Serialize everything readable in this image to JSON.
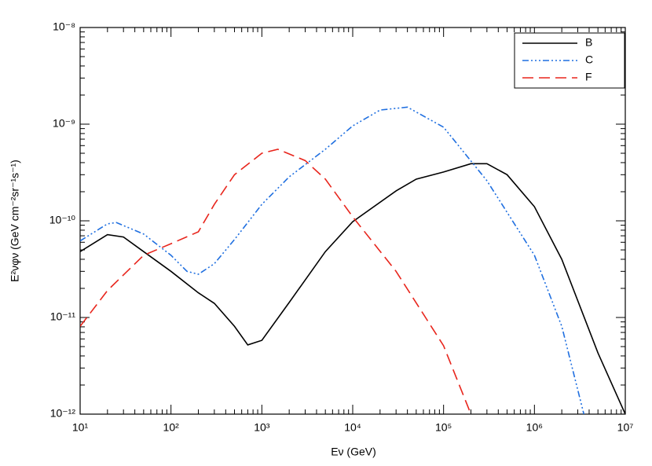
{
  "chart_data": {
    "type": "line",
    "x_label": "Eν (GeV)",
    "y_label": "E²νφν (GeV cm⁻²sr⁻¹s⁻¹)",
    "xscale": "log",
    "yscale": "log",
    "xlim": [
      10,
      10000000
    ],
    "ylim": [
      1e-12,
      1e-08
    ],
    "xticks": [
      {
        "value": 10,
        "label": "10¹"
      },
      {
        "value": 100,
        "label": "10²"
      },
      {
        "value": 1000,
        "label": "10³"
      },
      {
        "value": 10000,
        "label": "10⁴"
      },
      {
        "value": 100000,
        "label": "10⁵"
      },
      {
        "value": 1000000,
        "label": "10⁶"
      },
      {
        "value": 10000000,
        "label": "10⁷"
      }
    ],
    "yticks": [
      {
        "value": 1e-12,
        "label": "10⁻¹²"
      },
      {
        "value": 1e-11,
        "label": "10⁻¹¹"
      },
      {
        "value": 1e-10,
        "label": "10⁻¹⁰"
      },
      {
        "value": 1e-09,
        "label": "10⁻⁹"
      },
      {
        "value": 1e-08,
        "label": "10⁻⁸"
      }
    ],
    "legend": "upper right",
    "series": [
      {
        "name": "B",
        "color": "#000000",
        "dash": "solid",
        "x": [
          10,
          20,
          30,
          50,
          100,
          200,
          300,
          500,
          700,
          1000,
          2000,
          5000,
          10000,
          30000,
          50000,
          100000,
          200000,
          300000,
          500000,
          1000000,
          2000000,
          5000000,
          10000000
        ],
        "values": [
          4.8e-11,
          7.2e-11,
          6.8e-11,
          4.8e-11,
          3e-11,
          1.8e-11,
          1.4e-11,
          8.1e-12,
          5.2e-12,
          5.8e-12,
          1.43e-11,
          4.8e-11,
          9.8e-11,
          2.04e-10,
          2.7e-10,
          3.2e-10,
          3.9e-10,
          3.9e-10,
          3e-10,
          1.4e-10,
          4e-11,
          4.3e-12,
          1e-12
        ]
      },
      {
        "name": "C",
        "color": "#1f6fe0",
        "dash": "dash-dot-dot-dot",
        "x": [
          10,
          20,
          25,
          50,
          100,
          150,
          200,
          300,
          500,
          1000,
          2000,
          5000,
          10000,
          20000,
          40000,
          100000,
          300000,
          1000000,
          2000000,
          3500000
        ],
        "values": [
          6.2e-11,
          9.3e-11,
          9.6e-11,
          7.3e-11,
          4.4e-11,
          3e-11,
          2.8e-11,
          3.6e-11,
          6.4e-11,
          1.48e-10,
          2.85e-10,
          5.5e-10,
          9.6e-10,
          1.4e-09,
          1.5e-09,
          9.3e-10,
          2.6e-10,
          4.4e-11,
          8.1e-12,
          1e-12
        ]
      },
      {
        "name": "F",
        "color": "#e8251c",
        "dash": "dashed",
        "x": [
          10,
          20,
          50,
          100,
          200,
          300,
          500,
          1000,
          1500,
          3000,
          5000,
          10000,
          30000,
          100000,
          200000
        ],
        "values": [
          8.1e-12,
          1.9e-11,
          4.4e-11,
          5.8e-11,
          7.7e-11,
          1.48e-10,
          3e-10,
          5e-10,
          5.5e-10,
          4.2e-10,
          2.7e-10,
          1.1e-10,
          3e-11,
          5.1e-12,
          1e-12
        ]
      }
    ]
  }
}
